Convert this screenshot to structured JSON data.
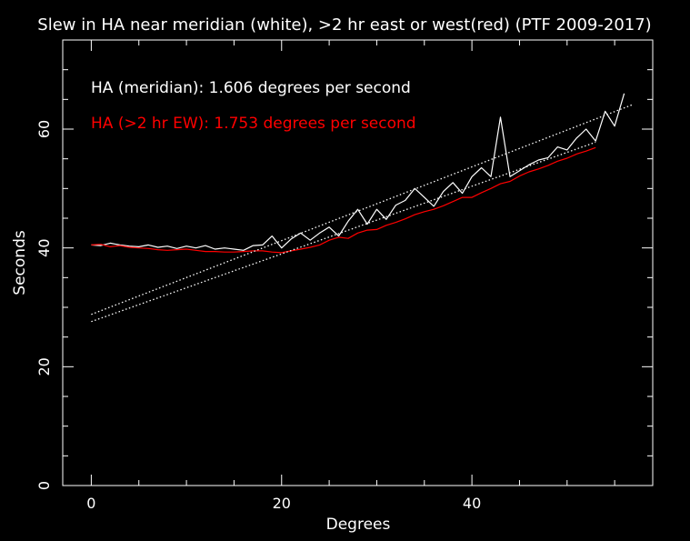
{
  "chart_data": {
    "type": "line",
    "title": "Slew in HA near meridian (white), >2 hr east or west(red) (PTF 2009-2017)",
    "xlabel": "Degrees",
    "ylabel": "Seconds",
    "xlim": [
      -3,
      59
    ],
    "ylim": [
      0,
      75
    ],
    "x_ticks": [
      0,
      20,
      40
    ],
    "y_ticks": [
      0,
      20,
      40,
      60
    ],
    "grid": false,
    "annotations": [
      {
        "text": "HA (meridian): 1.606 degrees per second",
        "color": "#ffffff"
      },
      {
        "text": "HA (>2 hr EW): 1.753 degrees per second",
        "color": "#ff0000"
      }
    ],
    "series": [
      {
        "color": "#ffffff",
        "style": "solid",
        "points": [
          [
            0,
            40.5
          ],
          [
            1,
            40.4
          ],
          [
            2,
            40.8
          ],
          [
            3,
            40.5
          ],
          [
            4,
            40.3
          ],
          [
            5,
            40.2
          ],
          [
            6,
            40.5
          ],
          [
            7,
            40.1
          ],
          [
            8,
            40.3
          ],
          [
            9,
            39.9
          ],
          [
            10,
            40.3
          ],
          [
            11,
            40.0
          ],
          [
            12,
            40.4
          ],
          [
            13,
            39.8
          ],
          [
            14,
            40.0
          ],
          [
            15,
            39.8
          ],
          [
            16,
            39.6
          ],
          [
            17,
            40.4
          ],
          [
            18,
            40.5
          ],
          [
            19,
            42.0
          ],
          [
            20,
            40.0
          ],
          [
            21,
            41.5
          ],
          [
            22,
            42.5
          ],
          [
            23,
            41.3
          ],
          [
            24,
            42.5
          ],
          [
            25,
            43.5
          ],
          [
            26,
            42.0
          ],
          [
            27,
            44.5
          ],
          [
            28,
            46.5
          ],
          [
            29,
            44.0
          ],
          [
            30,
            46.5
          ],
          [
            31,
            44.8
          ],
          [
            32,
            47.2
          ],
          [
            33,
            48.0
          ],
          [
            34,
            50.0
          ],
          [
            35,
            48.5
          ],
          [
            36,
            47.0
          ],
          [
            37,
            49.5
          ],
          [
            38,
            51.0
          ],
          [
            39,
            49.2
          ],
          [
            40,
            52.0
          ],
          [
            41,
            53.5
          ],
          [
            42,
            52.0
          ],
          [
            43,
            62.0
          ],
          [
            44,
            52.0
          ],
          [
            45,
            53.0
          ],
          [
            46,
            54.0
          ],
          [
            47,
            54.8
          ],
          [
            48,
            55.2
          ],
          [
            49,
            57.0
          ],
          [
            50,
            56.5
          ],
          [
            51,
            58.5
          ],
          [
            52,
            60.0
          ],
          [
            53,
            58.0
          ],
          [
            54,
            63.0
          ],
          [
            55,
            60.5
          ],
          [
            56,
            66.0
          ]
        ]
      },
      {
        "color": "#ff0000",
        "style": "solid",
        "points": [
          [
            0,
            40.5
          ],
          [
            1,
            40.6
          ],
          [
            2,
            40.2
          ],
          [
            3,
            40.4
          ],
          [
            4,
            40.1
          ],
          [
            5,
            40.0
          ],
          [
            6,
            39.9
          ],
          [
            7,
            39.7
          ],
          [
            8,
            39.6
          ],
          [
            9,
            39.7
          ],
          [
            10,
            39.8
          ],
          [
            11,
            39.6
          ],
          [
            12,
            39.4
          ],
          [
            13,
            39.4
          ],
          [
            14,
            39.3
          ],
          [
            15,
            39.3
          ],
          [
            16,
            39.4
          ],
          [
            17,
            39.5
          ],
          [
            18,
            39.5
          ],
          [
            19,
            39.3
          ],
          [
            20,
            39.2
          ],
          [
            21,
            39.5
          ],
          [
            22,
            39.8
          ],
          [
            23,
            40.1
          ],
          [
            24,
            40.5
          ],
          [
            25,
            41.3
          ],
          [
            26,
            41.8
          ],
          [
            27,
            41.6
          ],
          [
            28,
            42.5
          ],
          [
            29,
            43.0
          ],
          [
            30,
            43.1
          ],
          [
            31,
            43.8
          ],
          [
            32,
            44.3
          ],
          [
            33,
            44.9
          ],
          [
            34,
            45.6
          ],
          [
            35,
            46.1
          ],
          [
            36,
            46.5
          ],
          [
            37,
            47.1
          ],
          [
            38,
            47.8
          ],
          [
            39,
            48.5
          ],
          [
            40,
            48.5
          ],
          [
            41,
            49.3
          ],
          [
            42,
            50.0
          ],
          [
            43,
            50.8
          ],
          [
            44,
            51.2
          ],
          [
            45,
            52.1
          ],
          [
            46,
            52.8
          ],
          [
            47,
            53.3
          ],
          [
            48,
            53.9
          ],
          [
            49,
            54.6
          ],
          [
            50,
            55.1
          ],
          [
            51,
            55.8
          ],
          [
            52,
            56.3
          ],
          [
            53,
            56.9
          ]
        ]
      },
      {
        "color": "#ffffff",
        "style": "dotted",
        "points": [
          [
            0,
            28.8
          ],
          [
            57,
            64.2
          ]
        ]
      },
      {
        "color": "#ffffff",
        "style": "dotted",
        "points": [
          [
            0,
            27.6
          ],
          [
            53,
            57.8
          ]
        ]
      }
    ]
  }
}
